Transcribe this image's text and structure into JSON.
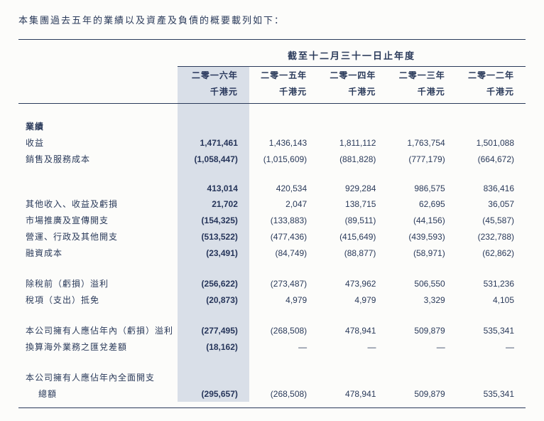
{
  "intro": "本集團過去五年的業績以及資產及負債的概要載列如下：",
  "spanTitle": "截至十二月三十一日止年度",
  "years": [
    "二零一六年",
    "二零一五年",
    "二零一四年",
    "二零一三年",
    "二零一二年"
  ],
  "unit": "千港元",
  "sections": {
    "perfHeader": "業績",
    "row1_label": "收益",
    "row1": [
      "1,471,461",
      "1,436,143",
      "1,811,112",
      "1,763,754",
      "1,501,088"
    ],
    "row2_label": "銷售及服務成本",
    "row2": [
      "(1,058,447)",
      "(1,015,609)",
      "(881,828)",
      "(777,179)",
      "(664,672)"
    ],
    "row3_label": "",
    "row3": [
      "413,014",
      "420,534",
      "929,284",
      "986,575",
      "836,416"
    ],
    "row4_label": "其他收入、收益及虧損",
    "row4": [
      "21,702",
      "2,047",
      "138,715",
      "62,695",
      "36,057"
    ],
    "row5_label": "市場推廣及宣傳開支",
    "row5": [
      "(154,325)",
      "(133,883)",
      "(89,511)",
      "(44,156)",
      "(45,587)"
    ],
    "row6_label": "營運、行政及其他開支",
    "row6": [
      "(513,522)",
      "(477,436)",
      "(415,649)",
      "(439,593)",
      "(232,788)"
    ],
    "row7_label": "融資成本",
    "row7": [
      "(23,491)",
      "(84,749)",
      "(88,877)",
      "(58,971)",
      "(62,862)"
    ],
    "row8_label": "除稅前（虧損）溢利",
    "row8": [
      "(256,622)",
      "(273,487)",
      "473,962",
      "506,550",
      "531,236"
    ],
    "row9_label": "稅項（支出）抵免",
    "row9": [
      "(20,873)",
      "4,979",
      "4,979",
      "3,329",
      "4,105"
    ],
    "row10_label": "本公司擁有人應佔年內（虧損）溢利",
    "row10": [
      "(277,495)",
      "(268,508)",
      "478,941",
      "509,879",
      "535,341"
    ],
    "row11_label": "換算海外業務之匯兌差額",
    "row11": [
      "(18,162)",
      "—",
      "—",
      "—",
      "—"
    ],
    "row12_label_line1": "本公司擁有人應佔年內全面開支",
    "row12_label_line2": "總額",
    "row12": [
      "(295,657)",
      "(268,508)",
      "478,941",
      "509,879",
      "535,341"
    ]
  },
  "style": {
    "highlightBg": "#d9dfe8",
    "textColor": "#2a3a5a",
    "borderColor": "#2a3a5a",
    "pageBg": "#fcfcfa"
  }
}
